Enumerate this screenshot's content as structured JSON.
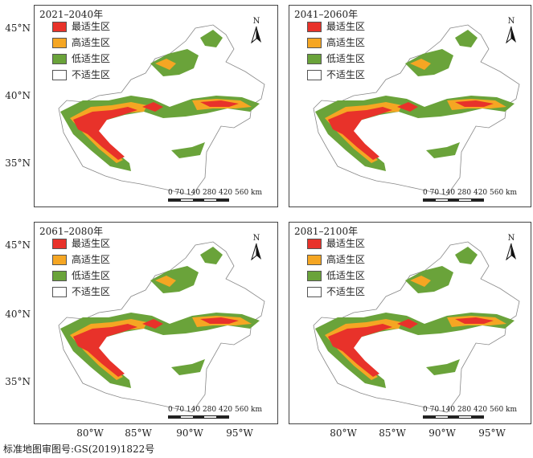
{
  "panels": [
    {
      "title": "2021–2040年"
    },
    {
      "title": "2041–2060年"
    },
    {
      "title": "2061–2080年"
    },
    {
      "title": "2081–2100年"
    }
  ],
  "legend": [
    {
      "label": "最适生区",
      "color": "#e8322a"
    },
    {
      "label": "高适生区",
      "color": "#f5a623"
    },
    {
      "label": "低适生区",
      "color": "#6aa33a"
    },
    {
      "label": "不适生区",
      "color": "#ffffff"
    }
  ],
  "north_label": "N",
  "scale_label": "0 70 140   280   420   560 km",
  "y_ticks": [
    "45°N",
    "40°N",
    "35°N"
  ],
  "x_ticks": [
    "80°W",
    "85°W",
    "90°W",
    "95°W"
  ],
  "caption": "标准地图审图号:GS(2019)1822号"
}
